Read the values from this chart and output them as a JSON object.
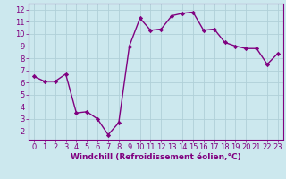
{
  "hours": [
    0,
    1,
    2,
    3,
    4,
    5,
    6,
    7,
    8,
    9,
    10,
    11,
    12,
    13,
    14,
    15,
    16,
    17,
    18,
    19,
    20,
    21,
    22,
    23
  ],
  "values": [
    6.5,
    6.1,
    6.1,
    6.7,
    3.5,
    3.6,
    3.0,
    1.7,
    2.7,
    9.0,
    11.3,
    10.3,
    10.4,
    11.5,
    11.7,
    11.8,
    10.3,
    10.4,
    9.3,
    9.0,
    8.8,
    8.8,
    7.5,
    8.4
  ],
  "line_color": "#800080",
  "marker": "D",
  "marker_size": 2.2,
  "bg_color": "#cce8ee",
  "grid_color": "#b0d0d8",
  "xlabel": "Windchill (Refroidissement éolien,°C)",
  "xlabel_color": "#800080",
  "tick_color": "#800080",
  "ylim": [
    1.3,
    12.5
  ],
  "xlim": [
    -0.5,
    23.5
  ],
  "yticks": [
    2,
    3,
    4,
    5,
    6,
    7,
    8,
    9,
    10,
    11,
    12
  ],
  "xticks": [
    0,
    1,
    2,
    3,
    4,
    5,
    6,
    7,
    8,
    9,
    10,
    11,
    12,
    13,
    14,
    15,
    16,
    17,
    18,
    19,
    20,
    21,
    22,
    23
  ],
  "spine_color": "#800080",
  "fig_bg": "#cce8ee",
  "line_width": 1.0,
  "tick_fontsize": 6.0,
  "xlabel_fontsize": 6.5,
  "xlabel_fontweight": "bold"
}
